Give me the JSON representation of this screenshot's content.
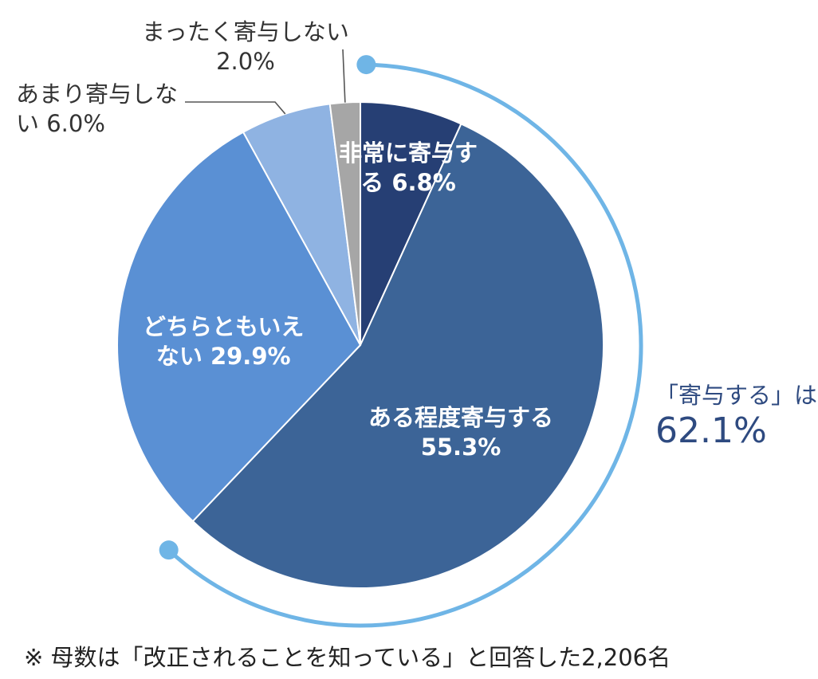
{
  "chart_data": {
    "type": "pie",
    "start_angle_deg": 0,
    "direction": "clockwise",
    "slices": [
      {
        "label": "非常に寄与する",
        "value": 6.8,
        "display": "非常に寄与す\nる 6.8%",
        "color": "#263f74"
      },
      {
        "label": "ある程度寄与する",
        "value": 55.3,
        "display": "ある程度寄与する\n55.3%",
        "color": "#3c6497"
      },
      {
        "label": "どちらともいえない",
        "value": 29.9,
        "display": "どちらともいえ\nない 29.9%",
        "color": "#5a90d4"
      },
      {
        "label": "あまり寄与しない",
        "value": 6.0,
        "display": "あまり寄与しな\nい 6.0%",
        "color": "#8fb3e2"
      },
      {
        "label": "まったく寄与しない",
        "value": 2.0,
        "display": "まったく寄与しない\n2.0%",
        "color": "#a6a6a6"
      }
    ],
    "highlight_arc": {
      "label": "「寄与する」は",
      "value": "62.1%",
      "covers": [
        "非常に寄与する",
        "ある程度寄与する"
      ],
      "color": "#6fb5e6"
    }
  },
  "footnote": "※ 母数は「改正されることを知っている」と回答した2,206名"
}
